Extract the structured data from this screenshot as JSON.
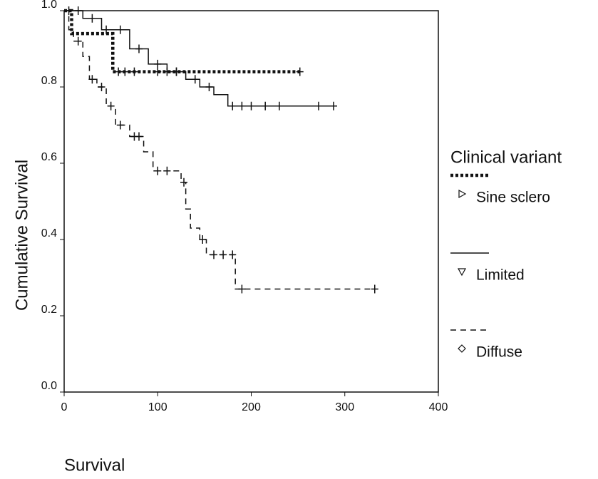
{
  "chart_data": {
    "type": "step",
    "ylabel": "Cumulative Survival",
    "xlabel": "Survival",
    "legend_title": "Clinical variant",
    "xlim": [
      0,
      400
    ],
    "xticks": [
      0,
      100,
      200,
      300,
      400
    ],
    "ylim": [
      0,
      1
    ],
    "yticks": [
      {
        "value": 0,
        "label": "0.0"
      },
      0.2,
      0.4,
      0.6,
      0.8,
      {
        "value": 1,
        "label": "1.0"
      }
    ],
    "series": [
      {
        "name": "Sine sclero",
        "color": "#111111",
        "style": "dotted",
        "marker": "triangle-right",
        "x": [
          0,
          8,
          52,
          252
        ],
        "values": [
          1.0,
          0.94,
          0.84,
          0.84
        ],
        "censored": [
          58,
          65,
          75,
          100,
          110,
          120,
          252
        ]
      },
      {
        "name": "Limited",
        "color": "#111111",
        "style": "solid",
        "marker": "triangle-down",
        "x": [
          0,
          20,
          40,
          70,
          90,
          110,
          130,
          145,
          160,
          175,
          290
        ],
        "values": [
          1.0,
          0.98,
          0.95,
          0.9,
          0.86,
          0.84,
          0.82,
          0.8,
          0.78,
          0.75,
          0.75
        ],
        "censored": [
          5,
          15,
          30,
          45,
          60,
          80,
          100,
          120,
          140,
          155,
          180,
          190,
          200,
          215,
          230,
          272,
          288
        ]
      },
      {
        "name": "Diffuse",
        "color": "#111111",
        "style": "dashed",
        "marker": "diamond",
        "x": [
          0,
          5,
          10,
          20,
          27,
          35,
          45,
          55,
          70,
          85,
          95,
          125,
          130,
          135,
          145,
          152,
          183,
          332
        ],
        "values": [
          1.0,
          0.95,
          0.92,
          0.88,
          0.82,
          0.8,
          0.75,
          0.7,
          0.67,
          0.63,
          0.58,
          0.55,
          0.48,
          0.43,
          0.4,
          0.36,
          0.27,
          0.27
        ],
        "censored": [
          15,
          30,
          40,
          50,
          60,
          75,
          80,
          100,
          110,
          128,
          148,
          160,
          170,
          180,
          190,
          332
        ]
      }
    ]
  }
}
